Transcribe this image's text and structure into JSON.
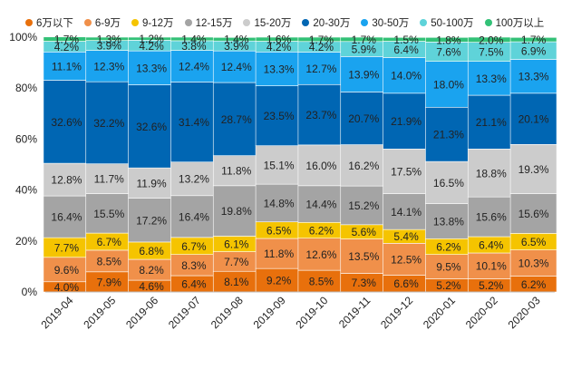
{
  "chart_data": {
    "type": "bar",
    "stacked": true,
    "percent": true,
    "title": "",
    "xlabel": "",
    "ylabel": "",
    "ylim": [
      0,
      100
    ],
    "yticks": [
      "0%",
      "20%",
      "40%",
      "60%",
      "80%",
      "100%"
    ],
    "legend_position": "top",
    "categories": [
      "2019-04",
      "2019-05",
      "2019-06",
      "2019-07",
      "2019-08",
      "2019-09",
      "2019-10",
      "2019-11",
      "2019-12",
      "2020-01",
      "2020-02",
      "2020-03"
    ],
    "series": [
      {
        "name": "6万以下",
        "color": "#e8700c",
        "values": [
          4.0,
          7.9,
          4.6,
          6.4,
          8.1,
          9.2,
          8.5,
          7.3,
          6.6,
          5.2,
          5.2,
          6.2
        ]
      },
      {
        "name": "6-9万",
        "color": "#f0904a",
        "values": [
          9.6,
          8.5,
          8.2,
          8.3,
          7.7,
          11.8,
          12.6,
          13.5,
          12.5,
          9.5,
          10.1,
          10.3
        ]
      },
      {
        "name": "9-12万",
        "color": "#f5c400",
        "values": [
          7.7,
          6.7,
          6.8,
          6.7,
          6.1,
          6.5,
          6.2,
          5.6,
          5.4,
          6.2,
          6.4,
          6.5
        ]
      },
      {
        "name": "12-15万",
        "color": "#a4a4a4",
        "values": [
          16.4,
          15.5,
          17.2,
          16.4,
          19.8,
          14.8,
          14.4,
          15.2,
          14.1,
          13.8,
          15.6,
          15.6
        ]
      },
      {
        "name": "15-20万",
        "color": "#cccccc",
        "values": [
          12.8,
          11.7,
          11.9,
          13.2,
          11.8,
          15.1,
          16.0,
          16.2,
          17.5,
          16.5,
          18.8,
          19.3
        ]
      },
      {
        "name": "20-30万",
        "color": "#0066b3",
        "values": [
          32.6,
          32.2,
          32.6,
          31.4,
          28.7,
          23.5,
          23.7,
          20.7,
          21.9,
          21.3,
          21.1,
          20.1
        ]
      },
      {
        "name": "30-50万",
        "color": "#1aa3ef",
        "values": [
          11.1,
          12.3,
          13.3,
          12.4,
          12.4,
          13.3,
          12.7,
          13.9,
          14.0,
          18.0,
          13.3,
          13.3
        ]
      },
      {
        "name": "50-100万",
        "color": "#5fd3d9",
        "values": [
          4.2,
          3.9,
          4.2,
          3.8,
          3.9,
          4.2,
          4.2,
          5.9,
          6.4,
          7.6,
          7.5,
          6.9
        ]
      },
      {
        "name": "100万以上",
        "color": "#33c177",
        "values": [
          1.7,
          1.3,
          1.2,
          1.4,
          1.4,
          1.6,
          1.7,
          1.7,
          1.5,
          1.8,
          2.0,
          1.7
        ]
      }
    ]
  }
}
